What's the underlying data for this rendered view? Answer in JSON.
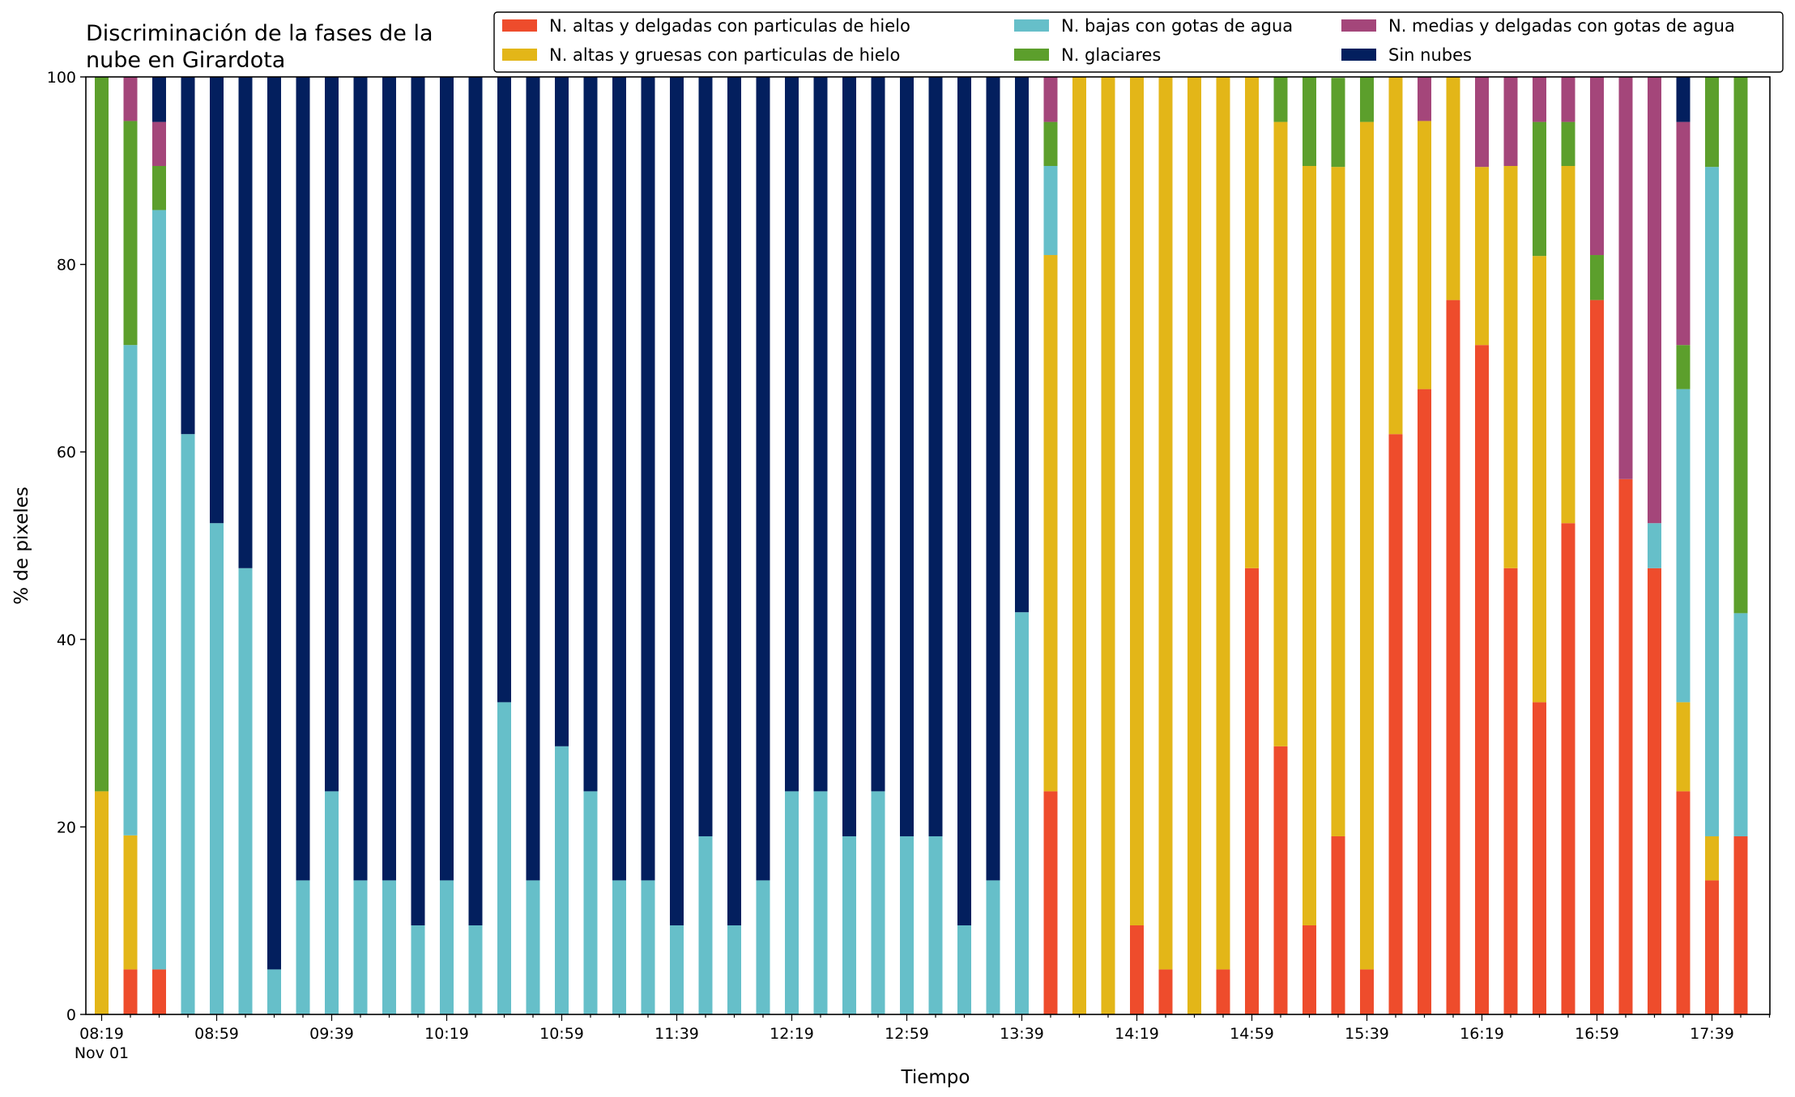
{
  "chart_data": {
    "type": "bar",
    "stacked": true,
    "title": "Discriminación de la fases de la\nnube en Girardota",
    "xlabel": "Tiempo",
    "ylabel": "% de pixeles",
    "ylim": [
      0,
      100
    ],
    "yticks": [
      0,
      20,
      40,
      60,
      80,
      100
    ],
    "grid": false,
    "legend_position": "top-right",
    "x_start_time": "08:19",
    "x_interval_minutes": 10,
    "x_tick_every": 4,
    "x_date_label": "Nov 01",
    "xtick_labels": [
      "08:19",
      "08:59",
      "09:39",
      "10:19",
      "10:59",
      "11:39",
      "12:19",
      "12:59",
      "13:39",
      "14:19",
      "14:59",
      "15:39",
      "16:19",
      "16:59",
      "17:39"
    ],
    "series": [
      {
        "name": "N. altas y delgadas con particulas de hielo",
        "color": "#ee4c2c",
        "values": [
          0,
          4.8,
          4.8,
          0,
          0,
          0,
          0,
          0,
          0,
          0,
          0,
          0,
          0,
          0,
          0,
          0,
          0,
          0,
          0,
          0,
          0,
          0,
          0,
          0,
          0,
          0,
          0,
          0,
          0,
          0,
          0,
          0,
          0,
          23.8,
          0,
          0,
          9.5,
          4.8,
          0,
          4.8,
          47.6,
          28.6,
          9.5,
          19,
          4.8,
          61.9,
          66.7,
          76.2,
          71.4,
          47.6,
          33.3,
          52.4,
          76.2,
          57.1,
          47.6,
          23.8,
          14.3,
          19
        ]
      },
      {
        "name": "N. altas y gruesas con particulas de hielo",
        "color": "#e3b618",
        "values": [
          23.8,
          14.3,
          0,
          0,
          0,
          0,
          0,
          0,
          0,
          0,
          0,
          0,
          0,
          0,
          0,
          0,
          0,
          0,
          0,
          0,
          0,
          0,
          0,
          0,
          0,
          0,
          0,
          0,
          0,
          0,
          0,
          0,
          0,
          57.2,
          100,
          100,
          90.5,
          95.2,
          100,
          95.2,
          52.4,
          66.6,
          81,
          71.4,
          90.4,
          38.1,
          28.6,
          23.8,
          19,
          42.9,
          47.6,
          38.1,
          0,
          0,
          0,
          9.5,
          4.7,
          0
        ]
      },
      {
        "name": "N. bajas con gotas de agua",
        "color": "#66bfc9",
        "values": [
          0,
          52.3,
          81,
          61.9,
          52.4,
          47.6,
          4.8,
          14.3,
          23.8,
          14.3,
          14.3,
          9.5,
          14.3,
          9.5,
          33.3,
          14.3,
          28.6,
          23.8,
          14.3,
          14.3,
          9.5,
          19,
          9.5,
          14.3,
          23.8,
          23.8,
          19,
          23.8,
          19,
          19,
          9.5,
          14.3,
          42.9,
          9.5,
          0,
          0,
          0,
          0,
          0,
          0,
          0,
          0,
          0,
          0,
          0,
          0,
          0,
          0,
          0,
          0,
          0,
          0,
          0,
          0,
          4.8,
          33.4,
          71.4,
          23.8
        ]
      },
      {
        "name": "N. glaciares",
        "color": "#5c9f2c",
        "values": [
          76.2,
          23.9,
          4.7,
          0,
          0,
          0,
          0,
          0,
          0,
          0,
          0,
          0,
          0,
          0,
          0,
          0,
          0,
          0,
          0,
          0,
          0,
          0,
          0,
          0,
          0,
          0,
          0,
          0,
          0,
          0,
          0,
          0,
          0,
          4.7,
          0,
          0,
          0,
          0,
          0,
          0,
          0,
          4.8,
          9.5,
          9.5,
          4.8,
          0,
          0,
          0,
          0,
          0,
          14.3,
          4.7,
          4.8,
          0,
          0,
          4.7,
          9.6,
          57.2
        ]
      },
      {
        "name": "N. medias y delgadas con gotas de agua",
        "color": "#a4467a",
        "values": [
          0,
          4.7,
          4.7,
          0,
          0,
          0,
          0,
          0,
          0,
          0,
          0,
          0,
          0,
          0,
          0,
          0,
          0,
          0,
          0,
          0,
          0,
          0,
          0,
          0,
          0,
          0,
          0,
          0,
          0,
          0,
          0,
          0,
          0,
          4.8,
          0,
          0,
          0,
          0,
          0,
          0,
          0,
          0,
          0,
          0,
          0,
          0,
          4.7,
          0,
          9.6,
          9.5,
          4.8,
          4.8,
          19,
          42.9,
          47.6,
          23.8,
          0,
          0
        ]
      },
      {
        "name": "Sin nubes",
        "color": "#031f5e",
        "values": [
          0,
          0,
          4.8,
          38.1,
          47.6,
          52.4,
          95.2,
          85.7,
          76.2,
          85.7,
          85.7,
          90.5,
          85.7,
          90.5,
          66.7,
          85.7,
          71.4,
          76.2,
          85.7,
          85.7,
          90.5,
          81,
          90.5,
          85.7,
          76.2,
          76.2,
          81,
          76.2,
          81,
          81,
          90.5,
          85.7,
          57.1,
          0,
          0,
          0,
          0,
          0,
          0,
          0,
          0,
          0,
          0,
          0,
          0,
          0,
          0,
          0,
          0,
          0,
          0,
          0,
          0,
          0,
          0,
          4.8,
          0,
          0
        ]
      }
    ]
  }
}
